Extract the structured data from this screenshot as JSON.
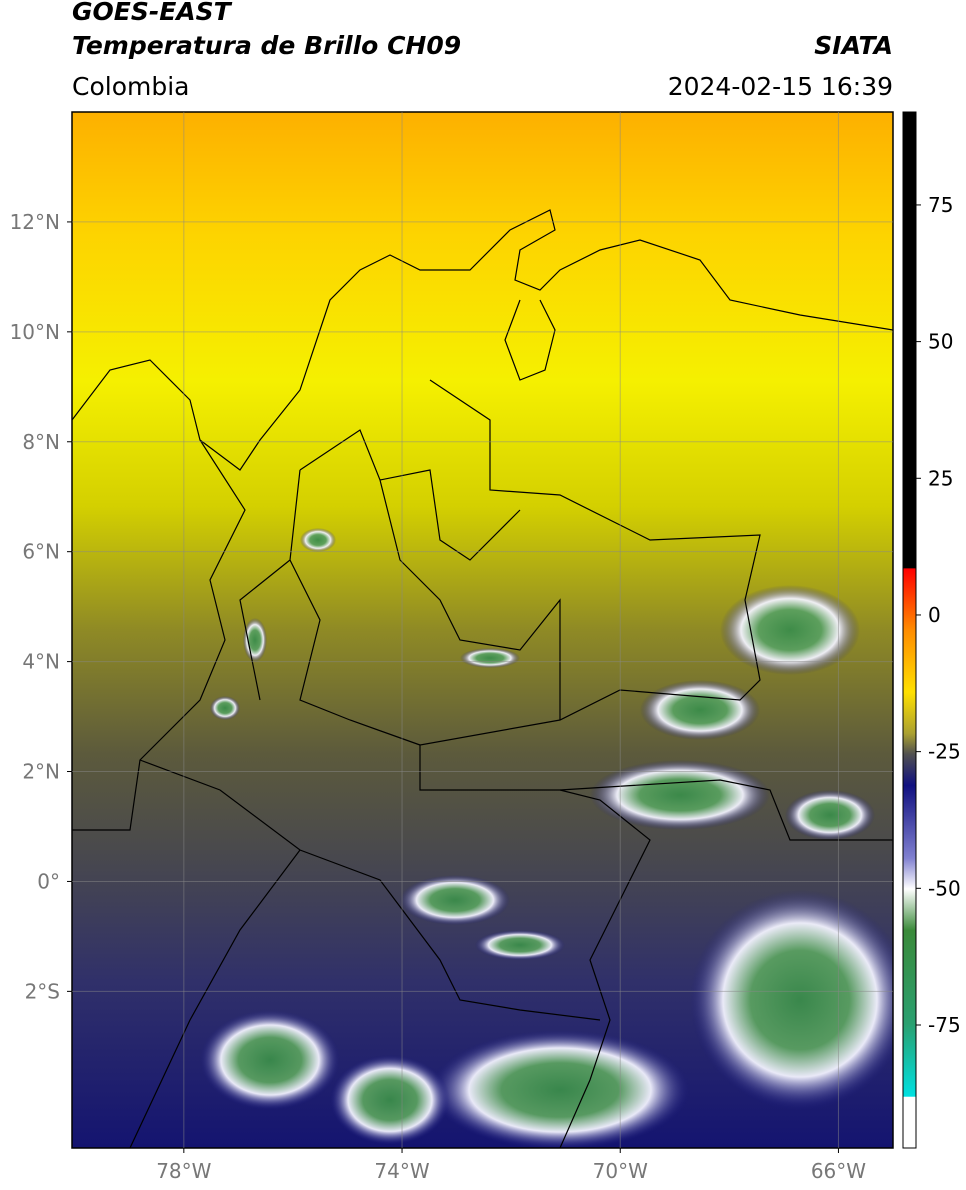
{
  "header": {
    "title_line1": "GOES-EAST",
    "title_line2": "Temperatura de Brillo CH09",
    "source": "SIATA",
    "region": "Colombia",
    "datetime": "2024-02-15 16:39"
  },
  "map": {
    "xlim": [
      -80.05,
      -65
    ],
    "ylim": [
      -4.85,
      14
    ],
    "yticks": [
      {
        "value": 12,
        "label": "12°N"
      },
      {
        "value": 10,
        "label": "10°N"
      },
      {
        "value": 8,
        "label": "8°N"
      },
      {
        "value": 6,
        "label": "6°N"
      },
      {
        "value": 4,
        "label": "4°N"
      },
      {
        "value": 2,
        "label": "2°N"
      },
      {
        "value": 0,
        "label": "0°"
      },
      {
        "value": -2,
        "label": "2°S"
      }
    ],
    "xticks": [
      {
        "value": -78,
        "label": "78°W"
      },
      {
        "value": -74,
        "label": "74°W"
      },
      {
        "value": -70,
        "label": "70°W"
      },
      {
        "value": -66,
        "label": "66°W"
      }
    ]
  },
  "colorbar": {
    "ylim": [
      -97.5,
      92
    ],
    "yticks": [
      75,
      50,
      25,
      0,
      -25,
      -50,
      -75
    ]
  }
}
